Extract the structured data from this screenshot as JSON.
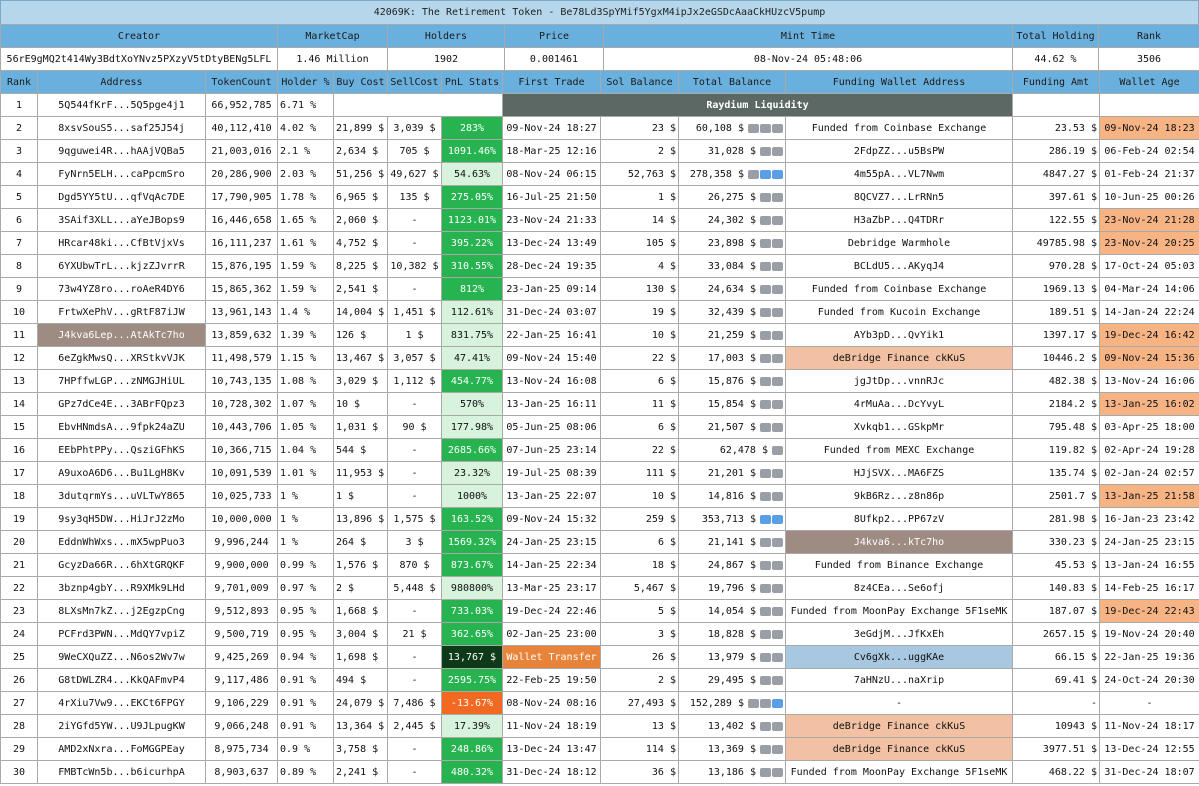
{
  "title": "42069K: The Retirement Token - Be78Ld3SpYMif5YgxM4ipJx2eGSDcAaaCkHUzcV5pump",
  "summary": {
    "headers": [
      "Creator",
      "MarketCap",
      "Holders",
      "Price",
      "Mint Time",
      "Total Holding",
      "Rank"
    ],
    "values": [
      "56rE9gMQ2t414Wy3BdtXoYNvz5PXzyV5tDtyBENg5LFL",
      "1.46 Million",
      "1902",
      "0.001461",
      "08-Nov-24 05:48:06",
      "44.62 %",
      "3506"
    ]
  },
  "columns": [
    "Rank",
    "Address",
    "TokenCount",
    "Holder %",
    "Buy Cost",
    "SellCost",
    "PnL Stats",
    "First Trade",
    "Sol Balance",
    "Total Balance",
    "Funding Wallet Address",
    "Funding Amt",
    "Wallet Age"
  ],
  "raydium_label": "Raydium Liquidity",
  "colors": {
    "header": "#6ab0de",
    "title": "#b6d7eb",
    "pnl_green": "#27b450",
    "pnl_light": "#d7f2dd",
    "pnl_dark": "#0f3a1a",
    "pnl_red": "#f26a22",
    "orange": "#f6b383",
    "salmon": "#f2c1a3",
    "taupe": "#9e8b82",
    "blue": "#a8c8e2",
    "raydium": "#5b6863"
  },
  "rows": [
    {
      "rank": "1",
      "address": "5Q544fKrF...5Q5pge4j1",
      "token_count": "66,952,785",
      "holder_pct": "6.71 %",
      "raydium": true,
      "funding_wallet": "",
      "funding_amt": "",
      "wallet_age": ""
    },
    {
      "rank": "2",
      "address": "8xsvSouS5...saf25J54j",
      "token_count": "40,112,410",
      "holder_pct": "4.02 %",
      "buy_cost": "21,899 $",
      "sell_cost": "3,039 $",
      "pnl": "283%",
      "pnl_style": "green",
      "first_trade": "09-Nov-24 18:27",
      "sol_balance": "23 $",
      "total_balance": "60,108 $",
      "icons": [
        "g",
        "g",
        "g"
      ],
      "funding_wallet": "Funded from Coinbase Exchange",
      "funding_amt": "23.53 $",
      "wallet_age": "09-Nov-24 18:23",
      "age_style": "orange"
    },
    {
      "rank": "3",
      "address": "9qguwei4R...hAAjVQBa5",
      "token_count": "21,003,016",
      "holder_pct": "2.1 %",
      "buy_cost": "2,634 $",
      "sell_cost": "705 $",
      "pnl": "1091.46%",
      "pnl_style": "green",
      "first_trade": "18-Mar-25 12:16",
      "sol_balance": "2 $",
      "total_balance": "31,028 $",
      "icons": [
        "g",
        "g"
      ],
      "funding_wallet": "2FdpZZ...u5BsPW",
      "funding_amt": "286.19 $",
      "wallet_age": "06-Feb-24 02:54"
    },
    {
      "rank": "4",
      "address": "FyNrn5ELH...caPpcmSro",
      "token_count": "20,286,900",
      "holder_pct": "2.03 %",
      "buy_cost": "51,256 $",
      "sell_cost": "49,627 $",
      "pnl": "54.63%",
      "pnl_style": "light",
      "first_trade": "08-Nov-24 06:15",
      "sol_balance": "52,763 $",
      "total_balance": "278,358 $",
      "icons": [
        "g",
        "b",
        "b"
      ],
      "funding_wallet": "4m55pA...VL7Nwm",
      "funding_amt": "4847.27 $",
      "wallet_age": "01-Feb-24 21:37"
    },
    {
      "rank": "5",
      "address": "Dgd5YY5tU...qfVqAc7DE",
      "token_count": "17,790,905",
      "holder_pct": "1.78 %",
      "buy_cost": "6,965 $",
      "sell_cost": "135 $",
      "pnl": "275.05%",
      "pnl_style": "green",
      "first_trade": "16-Jul-25 21:50",
      "sol_balance": "1 $",
      "total_balance": "26,275 $",
      "icons": [
        "g",
        "g"
      ],
      "funding_wallet": "8QCVZ7...LrRNn5",
      "funding_amt": "397.61 $",
      "wallet_age": "10-Jun-25 00:26"
    },
    {
      "rank": "6",
      "address": "3SAif3XLL...aYeJBops9",
      "token_count": "16,446,658",
      "holder_pct": "1.65 %",
      "buy_cost": "2,060 $",
      "sell_cost": "-",
      "pnl": "1123.01%",
      "pnl_style": "green",
      "first_trade": "23-Nov-24 21:33",
      "sol_balance": "14 $",
      "total_balance": "24,302 $",
      "icons": [
        "g",
        "g"
      ],
      "funding_wallet": "H3aZbP...Q4TDRr",
      "funding_amt": "122.55 $",
      "wallet_age": "23-Nov-24 21:28",
      "age_style": "orange"
    },
    {
      "rank": "7",
      "address": "HRcar48ki...CfBtVjxVs",
      "token_count": "16,111,237",
      "holder_pct": "1.61 %",
      "buy_cost": "4,752 $",
      "sell_cost": "-",
      "pnl": "395.22%",
      "pnl_style": "green",
      "first_trade": "13-Dec-24 13:49",
      "sol_balance": "105 $",
      "total_balance": "23,898 $",
      "icons": [
        "g",
        "g"
      ],
      "funding_wallet": "Debridge Warmhole",
      "funding_amt": "49785.98 $",
      "wallet_age": "23-Nov-24 20:25",
      "age_style": "orange"
    },
    {
      "rank": "8",
      "address": "6YXUbwTrL...kjzZJvrrR",
      "token_count": "15,876,195",
      "holder_pct": "1.59 %",
      "buy_cost": "8,225 $",
      "sell_cost": "10,382 $",
      "pnl": "310.55%",
      "pnl_style": "green",
      "first_trade": "28-Dec-24 19:35",
      "sol_balance": "4 $",
      "total_balance": "33,084 $",
      "icons": [
        "g",
        "g"
      ],
      "funding_wallet": "BCLdU5...AKyqJ4",
      "funding_amt": "970.28 $",
      "wallet_age": "17-Oct-24 05:03"
    },
    {
      "rank": "9",
      "address": "73w4YZ8ro...roAeR4DY6",
      "token_count": "15,865,362",
      "holder_pct": "1.59 %",
      "buy_cost": "2,541 $",
      "sell_cost": "-",
      "pnl": "812%",
      "pnl_style": "green",
      "first_trade": "23-Jan-25 09:14",
      "sol_balance": "130 $",
      "total_balance": "24,634 $",
      "icons": [
        "g",
        "g"
      ],
      "funding_wallet": "Funded from Coinbase Exchange",
      "funding_amt": "1969.13 $",
      "wallet_age": "04-Mar-24 14:06"
    },
    {
      "rank": "10",
      "address": "FrtwXePhV...gRtF87iJW",
      "token_count": "13,961,143",
      "holder_pct": "1.4 %",
      "buy_cost": "14,004 $",
      "sell_cost": "1,451 $",
      "pnl": "112.61%",
      "pnl_style": "light",
      "first_trade": "31-Dec-24 03:07",
      "sol_balance": "19 $",
      "total_balance": "32,439 $",
      "icons": [
        "g",
        "g"
      ],
      "funding_wallet": "Funded from Kucoin Exchange",
      "funding_amt": "189.51 $",
      "wallet_age": "14-Jan-24 22:24"
    },
    {
      "rank": "11",
      "address": "J4kva6Lep...AtAkTc7ho",
      "address_style": "taupe",
      "token_count": "13,859,632",
      "holder_pct": "1.39 %",
      "buy_cost": "126 $",
      "sell_cost": "1 $",
      "pnl": "831.75%",
      "pnl_style": "light",
      "first_trade": "22-Jan-25 16:41",
      "sol_balance": "10 $",
      "total_balance": "21,259 $",
      "icons": [
        "g",
        "g"
      ],
      "funding_wallet": "AYb3pD...QvYik1",
      "funding_amt": "1397.17 $",
      "wallet_age": "19-Dec-24 16:42",
      "age_style": "orange"
    },
    {
      "rank": "12",
      "address": "6eZgkMwsQ...XRStkvVJK",
      "token_count": "11,498,579",
      "holder_pct": "1.15 %",
      "buy_cost": "13,467 $",
      "sell_cost": "3,057 $",
      "pnl": "47.41%",
      "pnl_style": "light",
      "first_trade": "09-Nov-24 15:40",
      "sol_balance": "22 $",
      "total_balance": "17,003 $",
      "icons": [
        "g",
        "g"
      ],
      "funding_wallet": "deBridge Finance ckKuS",
      "funding_style": "salmon",
      "funding_amt": "10446.2 $",
      "wallet_age": "09-Nov-24 15:36",
      "age_style": "orange"
    },
    {
      "rank": "13",
      "address": "7HPffwLGP...zNMGJHiUL",
      "token_count": "10,743,135",
      "holder_pct": "1.08 %",
      "buy_cost": "3,029 $",
      "sell_cost": "1,112 $",
      "pnl": "454.77%",
      "pnl_style": "green",
      "first_trade": "13-Nov-24 16:08",
      "sol_balance": "6 $",
      "total_balance": "15,876 $",
      "icons": [
        "g",
        "g"
      ],
      "funding_wallet": "jgJtDp...vnnRJc",
      "funding_amt": "482.38 $",
      "wallet_age": "13-Nov-24 16:06"
    },
    {
      "rank": "14",
      "address": "GPz7dCe4E...3ABrFQpz3",
      "token_count": "10,728,302",
      "holder_pct": "1.07 %",
      "buy_cost": "10 $",
      "sell_cost": "-",
      "pnl": "570%",
      "pnl_style": "light",
      "first_trade": "13-Jan-25 16:11",
      "sol_balance": "11 $",
      "total_balance": "15,854 $",
      "icons": [
        "g",
        "g"
      ],
      "funding_wallet": "4rMuAa...DcYvyL",
      "funding_amt": "2184.2 $",
      "wallet_age": "13-Jan-25 16:02",
      "age_style": "orange"
    },
    {
      "rank": "15",
      "address": "EbvHNmdsA...9fpk24aZU",
      "token_count": "10,443,706",
      "holder_pct": "1.05 %",
      "buy_cost": "1,031 $",
      "sell_cost": "90 $",
      "pnl": "177.98%",
      "pnl_style": "light",
      "first_trade": "05-Jun-25 08:06",
      "sol_balance": "6 $",
      "total_balance": "21,507 $",
      "icons": [
        "g",
        "g"
      ],
      "funding_wallet": "Xvkqb1...GSkpMr",
      "funding_amt": "795.48 $",
      "wallet_age": "03-Apr-25 18:00"
    },
    {
      "rank": "16",
      "address": "EEbPhtPPy...QsziGFhKS",
      "token_count": "10,366,715",
      "holder_pct": "1.04 %",
      "buy_cost": "544 $",
      "sell_cost": "-",
      "pnl": "2685.66%",
      "pnl_style": "green",
      "first_trade": "07-Jun-25 23:14",
      "sol_balance": "22 $",
      "total_balance": "62,478 $",
      "icons": [
        "g"
      ],
      "funding_wallet": "Funded from MEXC Exchange",
      "funding_amt": "119.82 $",
      "wallet_age": "02-Apr-24 19:28"
    },
    {
      "rank": "17",
      "address": "A9uxoA6D6...Bu1LgH8Kv",
      "token_count": "10,091,539",
      "holder_pct": "1.01 %",
      "buy_cost": "11,953 $",
      "sell_cost": "-",
      "pnl": "23.32%",
      "pnl_style": "light",
      "first_trade": "19-Jul-25 08:39",
      "sol_balance": "111 $",
      "total_balance": "21,201 $",
      "icons": [
        "g",
        "g"
      ],
      "funding_wallet": "HJjSVX...MA6FZS",
      "funding_amt": "135.74 $",
      "wallet_age": "02-Jan-24 02:57"
    },
    {
      "rank": "18",
      "address": "3dutqrmYs...uVLTwY865",
      "token_count": "10,025,733",
      "holder_pct": "1 %",
      "buy_cost": "1 $",
      "sell_cost": "-",
      "pnl": "1000%",
      "pnl_style": "light",
      "first_trade": "13-Jan-25 22:07",
      "sol_balance": "10 $",
      "total_balance": "14,816 $",
      "icons": [
        "g",
        "g"
      ],
      "funding_wallet": "9kB6Rz...z8n86p",
      "funding_amt": "2501.7 $",
      "wallet_age": "13-Jan-25 21:58",
      "age_style": "orange"
    },
    {
      "rank": "19",
      "address": "9sy3qH5DW...HiJrJ2zMo",
      "token_count": "10,000,000",
      "holder_pct": "1 %",
      "buy_cost": "13,896 $",
      "sell_cost": "1,575 $",
      "pnl": "163.52%",
      "pnl_style": "green",
      "first_trade": "09-Nov-24 15:32",
      "sol_balance": "259 $",
      "total_balance": "353,713 $",
      "icons": [
        "b",
        "b"
      ],
      "funding_wallet": "8Ufkp2...PP67zV",
      "funding_amt": "281.98 $",
      "wallet_age": "16-Jan-23 23:42"
    },
    {
      "rank": "20",
      "address": "EddnWhWxs...mX5wpPuo3",
      "token_count": "9,996,244",
      "holder_pct": "1 %",
      "buy_cost": "264 $",
      "sell_cost": "3 $",
      "pnl": "1569.32%",
      "pnl_style": "green",
      "first_trade": "24-Jan-25 23:15",
      "sol_balance": "6 $",
      "total_balance": "21,141 $",
      "icons": [
        "g",
        "g"
      ],
      "funding_wallet": "J4kva6...kTc7ho",
      "funding_style": "taupe",
      "funding_amt": "330.23 $",
      "wallet_age": "24-Jan-25 23:15"
    },
    {
      "rank": "21",
      "address": "GcyzDa66R...6hXtGRQKF",
      "token_count": "9,900,000",
      "holder_pct": "0.99 %",
      "buy_cost": "1,576 $",
      "sell_cost": "870 $",
      "pnl": "873.67%",
      "pnl_style": "green",
      "first_trade": "14-Jan-25 22:34",
      "sol_balance": "18 $",
      "total_balance": "24,867 $",
      "icons": [
        "g",
        "g"
      ],
      "funding_wallet": "Funded from Binance Exchange",
      "funding_amt": "45.53 $",
      "wallet_age": "13-Jan-24 16:55"
    },
    {
      "rank": "22",
      "address": "3bznp4gbY...R9XMk9LHd",
      "token_count": "9,701,009",
      "holder_pct": "0.97 %",
      "buy_cost": "2 $",
      "sell_cost": "5,448 $",
      "pnl": "980800%",
      "pnl_style": "light",
      "first_trade": "13-Mar-25 23:17",
      "sol_balance": "5,467 $",
      "total_balance": "19,796 $",
      "icons": [
        "g",
        "g"
      ],
      "funding_wallet": "8z4CEa...Se6ofj",
      "funding_amt": "140.83 $",
      "wallet_age": "14-Feb-25 16:17"
    },
    {
      "rank": "23",
      "address": "8LXsMn7kZ...j2EgzpCng",
      "token_count": "9,512,893",
      "holder_pct": "0.95 %",
      "buy_cost": "1,668 $",
      "sell_cost": "-",
      "pnl": "733.03%",
      "pnl_style": "green",
      "first_trade": "19-Dec-24 22:46",
      "sol_balance": "5 $",
      "total_balance": "14,054 $",
      "icons": [
        "g",
        "g"
      ],
      "funding_wallet": "Funded from MoonPay Exchange 5F1seMK",
      "funding_amt": "187.07 $",
      "wallet_age": "19-Dec-24 22:43",
      "age_style": "orange"
    },
    {
      "rank": "24",
      "address": "PCFrd3PWN...MdQY7vpiZ",
      "token_count": "9,500,719",
      "holder_pct": "0.95 %",
      "buy_cost": "3,004 $",
      "sell_cost": "21 $",
      "pnl": "362.65%",
      "pnl_style": "green",
      "first_trade": "02-Jan-25 23:00",
      "sol_balance": "3 $",
      "total_balance": "18,828 $",
      "icons": [
        "g",
        "g"
      ],
      "funding_wallet": "3eGdjM...JfKxEh",
      "funding_amt": "2657.15 $",
      "wallet_age": "19-Nov-24 20:40"
    },
    {
      "rank": "25",
      "address": "9WeCXQuZZ...N6os2Wv7w",
      "token_count": "9,425,269",
      "holder_pct": "0.94 %",
      "buy_cost": "1,698 $",
      "sell_cost": "-",
      "pnl": "13,767 $",
      "pnl_style": "dark",
      "first_trade": "Wallet Transfer",
      "trade_style": "wt",
      "sol_balance": "26 $",
      "total_balance": "13,979 $",
      "icons": [
        "g",
        "g"
      ],
      "funding_wallet": "Cv6gXk...uggKAe",
      "funding_style": "blue",
      "funding_amt": "66.15 $",
      "wallet_age": "22-Jan-25 19:36"
    },
    {
      "rank": "26",
      "address": "G8tDWLZR4...KkQAFmvP4",
      "token_count": "9,117,486",
      "holder_pct": "0.91 %",
      "buy_cost": "494 $",
      "sell_cost": "-",
      "pnl": "2595.75%",
      "pnl_style": "green",
      "first_trade": "22-Feb-25 19:50",
      "sol_balance": "2 $",
      "total_balance": "29,495 $",
      "icons": [
        "g",
        "g"
      ],
      "funding_wallet": "7aHNzU...naXrip",
      "funding_amt": "69.41 $",
      "wallet_age": "24-Oct-24 20:30"
    },
    {
      "rank": "27",
      "address": "4rXiu7Vw9...EKCt6FPGY",
      "token_count": "9,106,229",
      "holder_pct": "0.91 %",
      "buy_cost": "24,079 $",
      "sell_cost": "7,486 $",
      "pnl": "-13.67%",
      "pnl_style": "red",
      "first_trade": "08-Nov-24 08:16",
      "sol_balance": "27,493 $",
      "total_balance": "152,289 $",
      "icons": [
        "g",
        "g",
        "b"
      ],
      "funding_wallet": "-",
      "funding_amt": "-",
      "wallet_age": "-"
    },
    {
      "rank": "28",
      "address": "2iYGfd5YW...U9JLpugKW",
      "token_count": "9,066,248",
      "holder_pct": "0.91 %",
      "buy_cost": "13,364 $",
      "sell_cost": "2,445 $",
      "pnl": "17.39%",
      "pnl_style": "light",
      "first_trade": "11-Nov-24 18:19",
      "sol_balance": "13 $",
      "total_balance": "13,402 $",
      "icons": [
        "g",
        "g"
      ],
      "funding_wallet": "deBridge Finance ckKuS",
      "funding_style": "salmon",
      "funding_amt": "10943 $",
      "wallet_age": "11-Nov-24 18:17"
    },
    {
      "rank": "29",
      "address": "AMD2xNxra...FoMGGPEay",
      "token_count": "8,975,734",
      "holder_pct": "0.9 %",
      "buy_cost": "3,758 $",
      "sell_cost": "-",
      "pnl": "248.86%",
      "pnl_style": "green",
      "first_trade": "13-Dec-24 13:47",
      "sol_balance": "114 $",
      "total_balance": "13,369 $",
      "icons": [
        "g",
        "g"
      ],
      "funding_wallet": "deBridge Finance ckKuS",
      "funding_style": "salmon",
      "funding_amt": "3977.51 $",
      "wallet_age": "13-Dec-24 12:55"
    },
    {
      "rank": "30",
      "address": "FMBTcWn5b...b6icurhpA",
      "token_count": "8,903,637",
      "holder_pct": "0.89 %",
      "buy_cost": "2,241 $",
      "sell_cost": "-",
      "pnl": "480.32%",
      "pnl_style": "green",
      "first_trade": "31-Dec-24 18:12",
      "sol_balance": "36 $",
      "total_balance": "13,186 $",
      "icons": [
        "g",
        "g"
      ],
      "funding_wallet": "Funded from MoonPay Exchange 5F1seMK",
      "funding_amt": "468.22 $",
      "wallet_age": "31-Dec-24 18:07"
    }
  ]
}
